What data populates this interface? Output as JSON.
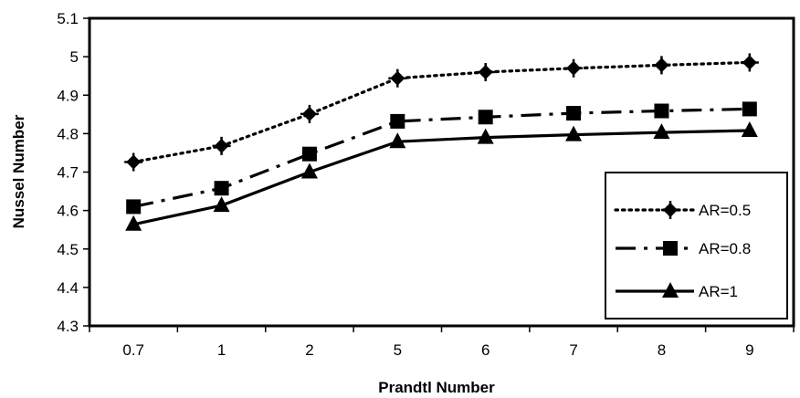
{
  "chart_data": {
    "type": "line",
    "categories": [
      "0.7",
      "1",
      "2",
      "5",
      "6",
      "7",
      "8",
      "9"
    ],
    "xlabel": "Prandtl Number",
    "ylabel": "Nussel Number",
    "ylim": [
      4.3,
      5.1
    ],
    "yticks": [
      "4.3",
      "4.4",
      "4.5",
      "4.6",
      "4.7",
      "4.8",
      "4.9",
      "5",
      "5.1"
    ],
    "grid": false,
    "legend_position": "right",
    "series": [
      {
        "name": "AR=0.5",
        "values": [
          4.726,
          4.768,
          4.851,
          4.944,
          4.96,
          4.97,
          4.978,
          4.985
        ],
        "line_style": "dotted",
        "marker": "diamond-cross"
      },
      {
        "name": "AR=0.8",
        "values": [
          4.61,
          4.658,
          4.747,
          4.832,
          4.843,
          4.853,
          4.859,
          4.864
        ],
        "line_style": "dash-dot",
        "marker": "square"
      },
      {
        "name": "AR=1",
        "values": [
          4.564,
          4.613,
          4.7,
          4.779,
          4.79,
          4.797,
          4.803,
          4.808
        ],
        "line_style": "solid",
        "marker": "triangle"
      }
    ]
  }
}
